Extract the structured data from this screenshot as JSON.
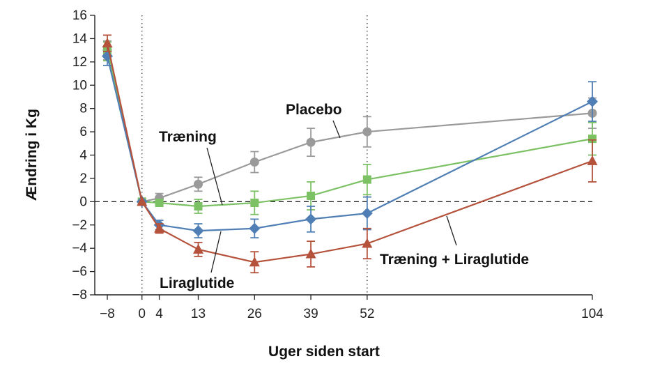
{
  "chart_data": {
    "type": "line",
    "title": "",
    "xlabel": "Uger siden start",
    "ylabel": "Ændring i Kg",
    "x": [
      -8,
      0,
      4,
      13,
      26,
      39,
      52,
      104
    ],
    "xticks": [
      "−8",
      "0",
      "4",
      "13",
      "26",
      "39",
      "52",
      "104"
    ],
    "xlim": [
      -8,
      104
    ],
    "ylim": [
      -8,
      16
    ],
    "yticks": [
      "−8",
      "−6",
      "−4",
      "−2",
      "0",
      "2",
      "4",
      "6",
      "8",
      "10",
      "12",
      "14",
      "16"
    ],
    "reference_lines": {
      "horizontal_dashed_at": 0,
      "vertical_dotted_at": [
        0,
        52
      ]
    },
    "grid": false,
    "legend": "inline labels",
    "series": [
      {
        "name": "Placebo",
        "color": "#9a9a9a",
        "marker": "circle",
        "values": [
          13.0,
          0.0,
          0.3,
          1.5,
          3.4,
          5.1,
          6.0,
          7.6
        ],
        "errors": [
          0.8,
          0.3,
          0.4,
          0.6,
          0.9,
          1.2,
          1.3,
          1.3
        ]
      },
      {
        "name": "Træning",
        "color": "#7dc165",
        "marker": "square",
        "values": [
          12.9,
          0.0,
          -0.1,
          -0.4,
          -0.1,
          0.5,
          1.9,
          5.4
        ],
        "errors": [
          0.8,
          0.3,
          0.3,
          0.6,
          1.0,
          1.2,
          1.3,
          1.4
        ]
      },
      {
        "name": "Liraglutide",
        "color": "#4f7fb5",
        "marker": "diamond",
        "values": [
          12.5,
          0.0,
          -2.0,
          -2.5,
          -2.3,
          -1.5,
          -1.0,
          8.6
        ],
        "errors": [
          0.8,
          0.3,
          0.4,
          0.6,
          0.8,
          1.1,
          1.4,
          1.7
        ]
      },
      {
        "name": "Træning + Liraglutide",
        "color": "#b5523c",
        "marker": "triangle",
        "values": [
          13.6,
          0.0,
          -2.3,
          -4.1,
          -5.2,
          -4.5,
          -3.6,
          3.5
        ],
        "errors": [
          0.7,
          0.3,
          0.4,
          0.6,
          0.9,
          1.1,
          1.3,
          1.8
        ]
      }
    ]
  }
}
